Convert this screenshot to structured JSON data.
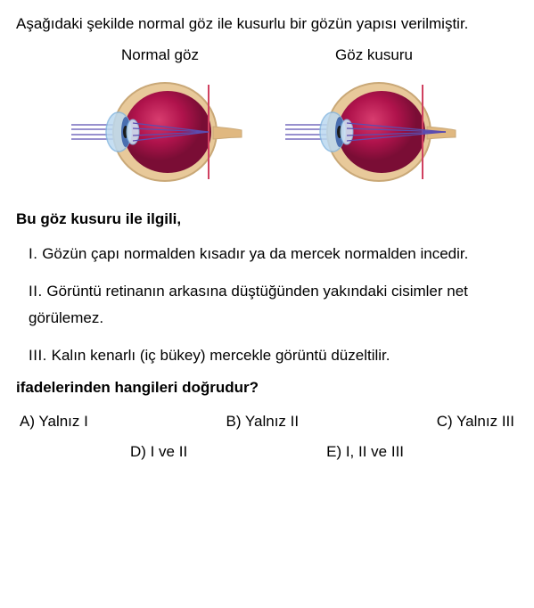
{
  "intro": "Aşağıdaki şekilde normal göz ile kusurlu bir gözün yapısı verilmiştir.",
  "diagrams": {
    "normal": {
      "label": "Normal göz"
    },
    "defect": {
      "label": "Göz kusuru"
    },
    "colors": {
      "sclera": "#e8c99a",
      "sclera_shadow": "#c9a877",
      "inner": "#b0134c",
      "inner_light": "#d83d6f",
      "inner_dark": "#7a0d35",
      "cornea": "#bcd9f0",
      "cornea_edge": "#88b8e0",
      "iris": "#4a6fb0",
      "pupil": "#1a1a1a",
      "lens": "#cfe4f5",
      "rays": "#5b4db0",
      "nerve": "#e0b880",
      "retina_line": "#d04060"
    }
  },
  "prompt": "Bu göz kusuru ile ilgili,",
  "statements": {
    "s1_num": "I.",
    "s1": "Gözün çapı normalden kısadır ya da mercek normalden incedir.",
    "s2_num": "II.",
    "s2": "Görüntü retinanın arkasına düştüğünden yakındaki cisimler net görülemez.",
    "s3_num": "III.",
    "s3": "Kalın kenarlı (iç bükey) mercekle görüntü düzeltilir."
  },
  "ending": "ifadelerinden hangileri doğrudur?",
  "choices": {
    "a": "A) Yalnız I",
    "b": "B) Yalnız II",
    "c": "C) Yalnız III",
    "d": "D) I ve II",
    "e": "E) I, II ve III"
  }
}
